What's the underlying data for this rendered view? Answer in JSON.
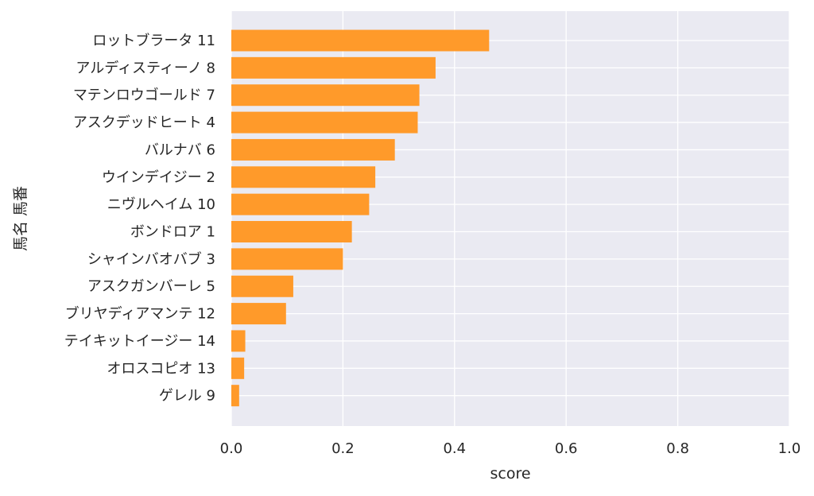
{
  "chart_data": {
    "type": "bar",
    "orientation": "horizontal",
    "categories": [
      "ロットブラータ 11",
      "アルディスティーノ 8",
      "マテンロウゴールド 7",
      "アスクデッドヒート 4",
      "バルナバ 6",
      "ウインデイジー 2",
      "ニヴルヘイム 10",
      "ボンドロア 1",
      "シャインバオバブ 3",
      "アスクガンバーレ 5",
      "ブリヤディアマンテ 12",
      "テイキットイージー 14",
      "オロスコピオ 13",
      "ゲレル 9"
    ],
    "values": [
      0.462,
      0.366,
      0.337,
      0.334,
      0.293,
      0.258,
      0.247,
      0.216,
      0.2,
      0.111,
      0.098,
      0.025,
      0.023,
      0.014
    ],
    "xlabel": "score",
    "ylabel": "馬名 馬番",
    "xlim": [
      0,
      1.0
    ],
    "x_ticks": [
      "0.0",
      "0.2",
      "0.4",
      "0.6",
      "0.8",
      "1.0"
    ],
    "grid": true,
    "colors": {
      "bar": "#ff9a2a",
      "plot_background": "#eaeaf2",
      "grid": "#ffffff"
    }
  }
}
